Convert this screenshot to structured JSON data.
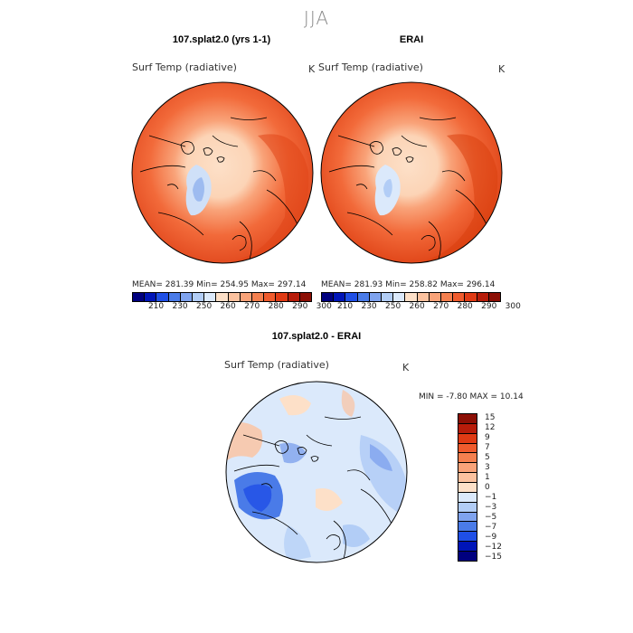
{
  "season": "JJA",
  "panels": {
    "model": {
      "title": "107.splat2.0 (yrs 1-1)",
      "variable": "Surf Temp (radiative)",
      "unit": "K",
      "stats": "MEAN= 281.39   Min= 254.95   Max= 297.14"
    },
    "obs": {
      "title": "ERAI",
      "variable": "Surf Temp (radiative)",
      "unit": "K",
      "stats": "MEAN= 281.93   Min= 258.82   Max= 296.14"
    },
    "diff": {
      "title": "107.splat2.0 - ERAI",
      "variable": "Surf Temp (radiative)",
      "unit": "K",
      "stats": "MIN =   -7.80  MAX =   10.14"
    }
  },
  "abs_colorbar": {
    "labels": [
      "210",
      "230",
      "250",
      "260",
      "270",
      "280",
      "290",
      "300"
    ],
    "colors": [
      "#00007f",
      "#0015b8",
      "#1f4fe6",
      "#4a7be8",
      "#7fa3ee",
      "#b2cdf6",
      "#dbe9fb",
      "#fde0c8",
      "#fcc29f",
      "#f9a379",
      "#f5804f",
      "#f05b2d",
      "#e03a14",
      "#b71c0a",
      "#8c0f05"
    ]
  },
  "diff_colorbar": {
    "labels": [
      "15",
      "12",
      "9",
      "7",
      "5",
      "3",
      "1",
      "0",
      "−1",
      "−3",
      "−5",
      "−7",
      "−9",
      "−12",
      "−15"
    ],
    "colors": [
      "#8c0f05",
      "#b71c0a",
      "#e03a14",
      "#f05b2d",
      "#f5804f",
      "#f9a379",
      "#fcc29f",
      "#fde0c8",
      "#dbe9fb",
      "#b2cdf6",
      "#7fa3ee",
      "#4a7be8",
      "#1f4fe6",
      "#0015b8",
      "#00007f"
    ]
  }
}
